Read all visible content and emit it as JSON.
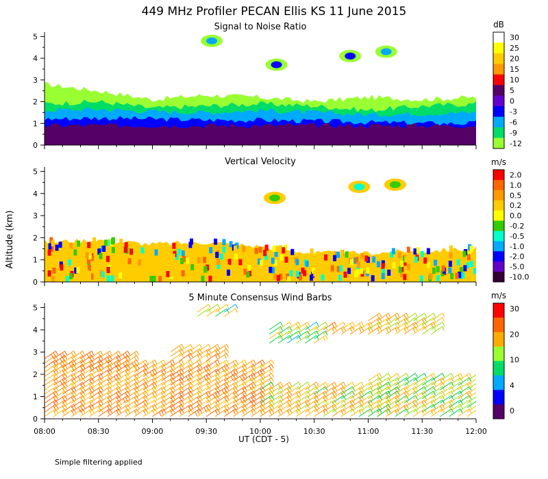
{
  "figure": {
    "title": "449 MHz Profiler PECAN Ellis KS 11 June 2015",
    "ylabel": "Altitude (km)",
    "xlabel": "UT  (CDT - 5)",
    "footnote": "Simple filtering applied"
  },
  "chart_data": [
    {
      "type": "heatmap",
      "title": "Signal to Noise Ratio",
      "xlabel": "UT  (CDT - 5)",
      "ylabel": "Altitude (km)",
      "x_ticks": [
        "08:00",
        "08:30",
        "09:00",
        "09:30",
        "10:00",
        "10:30",
        "11:00",
        "11:30",
        "12:00"
      ],
      "y_ticks": [
        "0",
        "1",
        "2",
        "3",
        "4",
        "5"
      ],
      "xlim": [
        "08:00",
        "12:00"
      ],
      "ylim": [
        0,
        5.2
      ],
      "colorbar": {
        "units": "dB",
        "labels": [
          "30",
          "25",
          "20",
          "15",
          "10",
          "5",
          "0",
          "-3",
          "-6",
          "-9",
          "-12"
        ],
        "colors": [
          "#ffffff",
          "#ffff00",
          "#ffcc00",
          "#ff9900",
          "#ff0000",
          "#550066",
          "#6600cc",
          "#0000ff",
          "#00aaff",
          "#00dd66",
          "#99ff33"
        ]
      },
      "layers": [
        {
          "top": [
            0.9,
            0.9,
            0.9,
            0.9,
            0.9,
            0.9,
            0.9,
            0.9,
            0.9
          ],
          "color": "#550066"
        },
        {
          "top": [
            1.2,
            1.25,
            1.2,
            1.15,
            1.15,
            1.1,
            1.05,
            1.0,
            1.0
          ],
          "color": "#0000ff"
        },
        {
          "top": [
            1.6,
            1.65,
            1.55,
            1.5,
            1.6,
            1.5,
            1.4,
            1.45,
            1.5
          ],
          "color": "#00aaff"
        },
        {
          "top": [
            1.9,
            2.0,
            1.7,
            1.8,
            1.9,
            1.8,
            1.6,
            1.8,
            1.9
          ],
          "color": "#00dd66"
        },
        {
          "top": [
            2.8,
            2.5,
            2.1,
            2.3,
            2.2,
            2.0,
            2.2,
            2.1,
            2.2
          ],
          "color": "#99ff33"
        }
      ],
      "blobs": [
        {
          "t": "09:33",
          "alt": 4.8,
          "color": "#00aaff"
        },
        {
          "t": "10:09",
          "alt": 3.7,
          "color": "#0000ff"
        },
        {
          "t": "10:50",
          "alt": 4.1,
          "color": "#0000ff"
        },
        {
          "t": "11:10",
          "alt": 4.3,
          "color": "#00aaff"
        }
      ]
    },
    {
      "type": "heatmap",
      "title": "Vertical Velocity",
      "xlabel": "UT  (CDT - 5)",
      "ylabel": "Altitude (km)",
      "x_ticks": [
        "08:00",
        "08:30",
        "09:00",
        "09:30",
        "10:00",
        "10:30",
        "11:00",
        "11:30",
        "12:00"
      ],
      "y_ticks": [
        "0",
        "1",
        "2",
        "3",
        "4",
        "5"
      ],
      "xlim": [
        "08:00",
        "12:00"
      ],
      "ylim": [
        0,
        5.2
      ],
      "colorbar": {
        "units": "m/s",
        "labels": [
          "2.0",
          "1.0",
          "0.5",
          "0.2",
          "0.0",
          "-0.2",
          "-0.5",
          "-1.0",
          "-2.0",
          "-5.0",
          "-10.0"
        ],
        "colors": [
          "#ff0000",
          "#ff6600",
          "#ff9900",
          "#ffcc00",
          "#ffff00",
          "#33cc00",
          "#00ffcc",
          "#00aaff",
          "#0000ff",
          "#6600cc",
          "#330033"
        ]
      },
      "layers": [
        {
          "top": [
            1.8,
            1.9,
            1.7,
            1.8,
            1.6,
            1.3,
            1.3,
            1.4,
            1.5
          ],
          "color": "#ffcc00"
        }
      ],
      "blobs": [
        {
          "t": "10:08",
          "alt": 3.8,
          "color": "#33cc00"
        },
        {
          "t": "10:55",
          "alt": 4.3,
          "color": "#00ffcc"
        },
        {
          "t": "11:15",
          "alt": 4.4,
          "color": "#33cc00"
        }
      ]
    },
    {
      "type": "scatter",
      "title": "5 Minute Consensus Wind Barbs",
      "xlabel": "UT  (CDT - 5)",
      "ylabel": "Altitude (km)",
      "x_ticks": [
        "08:00",
        "08:30",
        "09:00",
        "09:30",
        "10:00",
        "10:30",
        "11:00",
        "11:30",
        "12:00"
      ],
      "y_ticks": [
        "0",
        "1",
        "2",
        "3",
        "4",
        "5"
      ],
      "xlim": [
        "08:00",
        "12:00"
      ],
      "ylim": [
        0,
        5.2
      ],
      "colorbar": {
        "units": "m/s",
        "labels": [
          "30",
          "20",
          "10",
          "4",
          "0"
        ],
        "colors": [
          "#ff0000",
          "#ff6600",
          "#ffaa00",
          "#99ff33",
          "#00dd66",
          "#00aaff",
          "#0000ff",
          "#550066"
        ]
      },
      "barb_regions": [
        {
          "t0": "08:00",
          "t1": "10:00",
          "alt0": 0.1,
          "alt1": 2.3,
          "speed": 20
        },
        {
          "t0": "08:00",
          "t1": "08:45",
          "alt0": 2.1,
          "alt1": 2.8,
          "speed": 22
        },
        {
          "t0": "10:00",
          "t1": "11:10",
          "alt0": 0.1,
          "alt1": 1.4,
          "speed": 15
        },
        {
          "t0": "11:00",
          "t1": "12:00",
          "alt0": 0.1,
          "alt1": 1.7,
          "speed": 12
        },
        {
          "t0": "10:05",
          "t1": "10:30",
          "alt0": 3.4,
          "alt1": 4.0,
          "speed": 11
        },
        {
          "t0": "10:35",
          "t1": "11:00",
          "alt0": 3.8,
          "alt1": 4.1,
          "speed": 17
        },
        {
          "t0": "11:00",
          "t1": "11:35",
          "alt0": 3.8,
          "alt1": 4.4,
          "speed": 16
        },
        {
          "t0": "09:25",
          "t1": "09:40",
          "alt0": 4.6,
          "alt1": 4.9,
          "speed": 9
        },
        {
          "t0": "09:10",
          "t1": "09:35",
          "alt0": 2.6,
          "alt1": 3.2,
          "speed": 19
        }
      ]
    }
  ]
}
